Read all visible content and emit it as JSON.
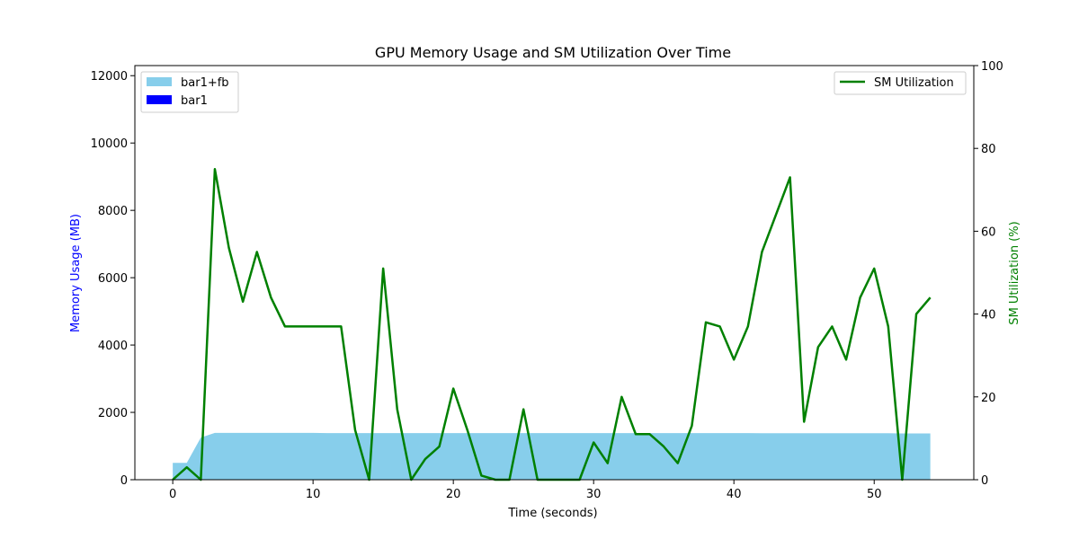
{
  "chart_data": {
    "type": "area",
    "title": "GPU Memory Usage and SM Utilization Over Time",
    "xlabel": "Time (seconds)",
    "ylabel_left": "Memory Usage (MB)",
    "ylabel_right": "SM Utilization (%)",
    "xlim": [
      -2.7,
      57.1
    ],
    "ylim_left": [
      0,
      12300
    ],
    "ylim_right": [
      0,
      100
    ],
    "xticks": [
      0,
      10,
      20,
      30,
      40,
      50
    ],
    "yticks_left": [
      0,
      2000,
      4000,
      6000,
      8000,
      10000,
      12000
    ],
    "yticks_right": [
      0,
      20,
      40,
      60,
      80,
      100
    ],
    "grid": false,
    "legend_left": {
      "placement": "top-left",
      "entries": [
        "bar1+fb",
        "bar1"
      ]
    },
    "legend_right": {
      "placement": "top-right",
      "entries": [
        "SM Utilization"
      ]
    },
    "colors": {
      "bar1_fb": "#87ceeb",
      "bar1": "#0000ff",
      "sm": "#008000",
      "left_axis_label": "#0000ff",
      "right_axis_label": "#008000"
    },
    "x": [
      0,
      1,
      2,
      3,
      4,
      5,
      6,
      7,
      8,
      9,
      10,
      11,
      12,
      13,
      14,
      15,
      16,
      17,
      18,
      19,
      20,
      21,
      22,
      23,
      24,
      25,
      26,
      27,
      28,
      29,
      30,
      31,
      32,
      33,
      34,
      35,
      36,
      37,
      38,
      39,
      40,
      41,
      42,
      43,
      44,
      45,
      46,
      47,
      48,
      49,
      50,
      51,
      52,
      53,
      54
    ],
    "series": [
      {
        "name": "bar1+fb",
        "axis": "left",
        "kind": "area",
        "values": [
          500,
          500,
          1250,
          1390,
          1390,
          1390,
          1390,
          1390,
          1390,
          1390,
          1390,
          1385,
          1385,
          1385,
          1385,
          1385,
          1385,
          1385,
          1385,
          1385,
          1385,
          1385,
          1385,
          1385,
          1385,
          1385,
          1385,
          1385,
          1385,
          1385,
          1385,
          1385,
          1385,
          1385,
          1385,
          1385,
          1385,
          1385,
          1385,
          1385,
          1385,
          1385,
          1380,
          1380,
          1380,
          1380,
          1380,
          1380,
          1380,
          1380,
          1380,
          1380,
          1375,
          1375,
          1375
        ]
      },
      {
        "name": "bar1",
        "axis": "left",
        "kind": "area",
        "values": [
          5,
          5,
          5,
          5,
          5,
          5,
          5,
          5,
          5,
          5,
          5,
          5,
          5,
          5,
          5,
          5,
          5,
          5,
          5,
          5,
          5,
          5,
          5,
          5,
          5,
          5,
          5,
          5,
          5,
          5,
          5,
          5,
          5,
          5,
          5,
          5,
          5,
          5,
          5,
          5,
          5,
          5,
          5,
          5,
          5,
          5,
          5,
          5,
          5,
          5,
          5,
          5,
          5,
          5,
          5
        ]
      },
      {
        "name": "SM Utilization",
        "axis": "right",
        "kind": "line",
        "values": [
          0,
          3,
          0,
          75,
          56,
          43,
          55,
          44,
          37,
          37,
          37,
          37,
          37,
          12,
          0,
          51,
          17,
          0,
          5,
          8,
          22,
          12,
          1,
          0,
          0,
          17,
          0,
          0,
          0,
          0,
          9,
          4,
          20,
          11,
          11,
          8,
          4,
          13,
          38,
          37,
          29,
          37,
          55,
          64,
          73,
          14,
          32,
          37,
          29,
          44,
          51,
          37,
          0,
          40,
          44
        ]
      }
    ]
  }
}
